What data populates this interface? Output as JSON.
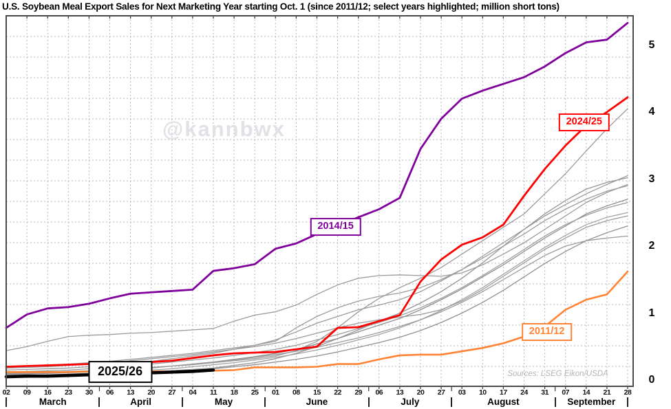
{
  "title": "U.S. Soybean Meal Export Sales for Next Marketing Year starting Oct. 1 (since 2011/12; select years highlighted; million short tons)",
  "watermark": "@kannbwx",
  "source_note": "Sources: LSEG Eikon/USDA",
  "y_axis": {
    "ticks": [
      0,
      1,
      2,
      3,
      4,
      5
    ]
  },
  "x_axis": {
    "week_labels": [
      "02",
      "09",
      "16",
      "23",
      "30",
      "06",
      "13",
      "20",
      "27",
      "04",
      "11",
      "18",
      "25",
      "01",
      "08",
      "15",
      "22",
      "29",
      "06",
      "13",
      "20",
      "27",
      "03",
      "10",
      "17",
      "24",
      "31",
      "07",
      "14",
      "21",
      "28"
    ],
    "months": [
      {
        "label": "March",
        "weeks": 5
      },
      {
        "label": "April",
        "weeks": 4
      },
      {
        "label": "May",
        "weeks": 4
      },
      {
        "label": "June",
        "weeks": 5
      },
      {
        "label": "July",
        "weeks": 4
      },
      {
        "label": "August",
        "weeks": 5
      },
      {
        "label": "September",
        "weeks": 4
      }
    ]
  },
  "colors": {
    "y2014_15": "#80009b",
    "y2024_25": "#fe0000",
    "y2011_12": "#ff8332",
    "y2025_26": "#000000",
    "other_years": "#9b9b9b",
    "grid": "#b6b6c2"
  },
  "chart_data": {
    "type": "line",
    "title": "U.S. Soybean Meal Export Sales for Next Marketing Year starting Oct. 1",
    "subtitle": "since 2011/12; select years highlighted",
    "ylabel": "million short tons",
    "ylim": [
      0,
      5.45
    ],
    "grid": true,
    "x": [
      "Mar 02",
      "Mar 09",
      "Mar 16",
      "Mar 23",
      "Mar 30",
      "Apr 06",
      "Apr 13",
      "Apr 20",
      "Apr 27",
      "May 04",
      "May 11",
      "May 18",
      "May 25",
      "Jun 01",
      "Jun 08",
      "Jun 15",
      "Jun 22",
      "Jun 29",
      "Jul 06",
      "Jul 13",
      "Jul 20",
      "Jul 27",
      "Aug 03",
      "Aug 10",
      "Aug 17",
      "Aug 24",
      "Aug 31",
      "Sep 07",
      "Sep 14",
      "Sep 21",
      "Sep 28"
    ],
    "series": [
      {
        "name": "unlabeled-1",
        "color": "#9b9b9b",
        "width": 1.3,
        "values": [
          0.44,
          0.5,
          0.58,
          0.65,
          0.67,
          0.68,
          0.7,
          0.71,
          0.73,
          0.75,
          0.77,
          0.88,
          0.97,
          1.02,
          1.12,
          1.28,
          1.42,
          1.52,
          1.56,
          1.57,
          1.56,
          1.55,
          1.6,
          1.72,
          1.88,
          2.05,
          2.25,
          2.45,
          2.65,
          2.8,
          2.92
        ]
      },
      {
        "name": "unlabeled-2",
        "color": "#9b9b9b",
        "width": 1.3,
        "values": [
          0.1,
          0.11,
          0.12,
          0.13,
          0.14,
          0.16,
          0.17,
          0.19,
          0.21,
          0.23,
          0.26,
          0.29,
          0.32,
          0.36,
          0.44,
          0.58,
          0.78,
          1.02,
          1.22,
          1.38,
          1.52,
          1.68,
          1.88,
          2.08,
          2.28,
          2.48,
          2.78,
          3.08,
          3.42,
          3.75,
          4.05
        ]
      },
      {
        "name": "unlabeled-3",
        "color": "#9b9b9b",
        "width": 1.3,
        "values": [
          0.15,
          0.16,
          0.17,
          0.18,
          0.2,
          0.22,
          0.25,
          0.28,
          0.32,
          0.36,
          0.4,
          0.46,
          0.52,
          0.6,
          0.72,
          0.85,
          0.95,
          1.05,
          1.12,
          1.2,
          1.32,
          1.48,
          1.65,
          1.85,
          2.05,
          2.25,
          2.45,
          2.62,
          2.78,
          2.92,
          3.05
        ]
      },
      {
        "name": "unlabeled-4",
        "color": "#959595",
        "width": 1.3,
        "values": [
          0.05,
          0.06,
          0.06,
          0.07,
          0.08,
          0.09,
          0.1,
          0.12,
          0.14,
          0.16,
          0.18,
          0.22,
          0.26,
          0.32,
          0.4,
          0.5,
          0.62,
          0.75,
          0.88,
          1.0,
          1.15,
          1.32,
          1.52,
          1.75,
          2.0,
          2.25,
          2.48,
          2.68,
          2.85,
          2.95,
          3.02
        ]
      },
      {
        "name": "unlabeled-5",
        "color": "#9b9b9b",
        "width": 1.3,
        "values": [
          0.2,
          0.21,
          0.22,
          0.24,
          0.26,
          0.28,
          0.31,
          0.34,
          0.37,
          0.4,
          0.44,
          0.48,
          0.52,
          0.58,
          0.78,
          0.95,
          1.08,
          1.18,
          1.25,
          1.3,
          1.38,
          1.5,
          1.65,
          1.82,
          2.0,
          2.18,
          2.38,
          2.55,
          2.7,
          2.82,
          2.9
        ]
      },
      {
        "name": "unlabeled-6",
        "color": "#8f8f8f",
        "width": 1.3,
        "values": [
          0.08,
          0.09,
          0.1,
          0.11,
          0.12,
          0.14,
          0.16,
          0.18,
          0.21,
          0.24,
          0.27,
          0.31,
          0.35,
          0.4,
          0.46,
          0.54,
          0.62,
          0.72,
          0.82,
          0.92,
          1.05,
          1.2,
          1.36,
          1.54,
          1.72,
          1.92,
          2.12,
          2.3,
          2.48,
          2.6,
          2.7
        ]
      },
      {
        "name": "unlabeled-7",
        "color": "#9b9b9b",
        "width": 1.3,
        "values": [
          0.12,
          0.13,
          0.14,
          0.15,
          0.17,
          0.19,
          0.21,
          0.24,
          0.27,
          0.3,
          0.33,
          0.37,
          0.41,
          0.46,
          0.52,
          0.6,
          0.68,
          0.77,
          0.86,
          0.96,
          1.08,
          1.22,
          1.38,
          1.56,
          1.75,
          1.95,
          2.15,
          2.32,
          2.46,
          2.57,
          2.65
        ]
      },
      {
        "name": "unlabeled-8",
        "color": "#a2a2a2",
        "width": 1.3,
        "values": [
          0.06,
          0.07,
          0.08,
          0.09,
          0.1,
          0.11,
          0.13,
          0.15,
          0.17,
          0.2,
          0.23,
          0.26,
          0.3,
          0.34,
          0.39,
          0.45,
          0.52,
          0.6,
          0.68,
          0.78,
          0.9,
          1.04,
          1.2,
          1.38,
          1.58,
          1.78,
          1.98,
          2.16,
          2.32,
          2.43,
          2.5
        ]
      },
      {
        "name": "unlabeled-9",
        "color": "#9b9b9b",
        "width": 1.3,
        "values": [
          0.18,
          0.19,
          0.2,
          0.22,
          0.24,
          0.26,
          0.29,
          0.32,
          0.35,
          0.38,
          0.42,
          0.46,
          0.5,
          0.55,
          0.62,
          0.7,
          0.78,
          0.85,
          0.9,
          0.94,
          0.98,
          1.05,
          1.18,
          1.35,
          1.55,
          1.75,
          1.95,
          2.12,
          2.28,
          2.38,
          2.45
        ]
      },
      {
        "name": "unlabeled-10",
        "color": "#909090",
        "width": 1.3,
        "values": [
          0.04,
          0.05,
          0.05,
          0.06,
          0.07,
          0.08,
          0.09,
          0.11,
          0.13,
          0.15,
          0.17,
          0.2,
          0.23,
          0.27,
          0.31,
          0.36,
          0.42,
          0.49,
          0.56,
          0.64,
          0.74,
          0.86,
          1.0,
          1.16,
          1.34,
          1.54,
          1.74,
          1.92,
          2.08,
          2.2,
          2.3
        ]
      },
      {
        "name": "unlabeled-11",
        "color": "#9b9b9b",
        "width": 1.3,
        "values": [
          0.09,
          0.1,
          0.11,
          0.12,
          0.13,
          0.15,
          0.17,
          0.19,
          0.21,
          0.24,
          0.27,
          0.3,
          0.34,
          0.38,
          0.43,
          0.49,
          0.56,
          0.63,
          0.71,
          0.8,
          0.9,
          1.02,
          1.16,
          1.32,
          1.5,
          1.68,
          1.86,
          2.0,
          2.08,
          2.12,
          2.15
        ]
      },
      {
        "name": "2011/12",
        "color": "#ff8332",
        "width": 2.6,
        "values": [
          0.12,
          0.12,
          0.12,
          0.12,
          0.13,
          0.13,
          0.13,
          0.13,
          0.13,
          0.13,
          0.14,
          0.15,
          0.19,
          0.19,
          0.19,
          0.2,
          0.24,
          0.24,
          0.31,
          0.37,
          0.38,
          0.38,
          0.43,
          0.48,
          0.55,
          0.65,
          0.8,
          1.05,
          1.2,
          1.28,
          1.62
        ]
      },
      {
        "name": "2014/15",
        "color": "#80009b",
        "width": 2.8,
        "values": [
          0.78,
          0.98,
          1.07,
          1.09,
          1.14,
          1.22,
          1.29,
          1.31,
          1.33,
          1.35,
          1.63,
          1.67,
          1.73,
          1.96,
          2.04,
          2.18,
          2.3,
          2.43,
          2.55,
          2.72,
          3.45,
          3.9,
          4.2,
          4.32,
          4.42,
          4.52,
          4.68,
          4.88,
          5.04,
          5.08,
          5.33
        ]
      },
      {
        "name": "2024/25",
        "color": "#fe0000",
        "width": 2.8,
        "values": [
          0.2,
          0.21,
          0.22,
          0.23,
          0.24,
          0.25,
          0.26,
          0.27,
          0.29,
          0.33,
          0.37,
          0.4,
          0.41,
          0.42,
          0.46,
          0.5,
          0.78,
          0.79,
          0.88,
          0.97,
          1.47,
          1.8,
          2.02,
          2.13,
          2.32,
          2.75,
          3.15,
          3.5,
          3.8,
          4.0,
          4.22
        ]
      },
      {
        "name": "2025/26",
        "color": "#000000",
        "width": 4.6,
        "values": [
          0.05,
          0.06,
          0.06,
          0.07,
          0.08,
          0.09,
          0.1,
          0.11,
          0.12,
          0.13,
          0.15
        ]
      }
    ],
    "annotations": [
      {
        "text": "2014/15",
        "color": "#80009b",
        "week": 15.9,
        "value": 2.29,
        "emphasis": false
      },
      {
        "text": "2024/25",
        "color": "#fe0000",
        "week": 27.9,
        "value": 3.85,
        "emphasis": false
      },
      {
        "text": "2011/12",
        "color": "#ff8332",
        "week": 26.1,
        "value": 0.72,
        "emphasis": false
      },
      {
        "text": "2025/26",
        "color": "#000000",
        "week": 5.5,
        "value": 0.12,
        "emphasis": true
      }
    ]
  }
}
